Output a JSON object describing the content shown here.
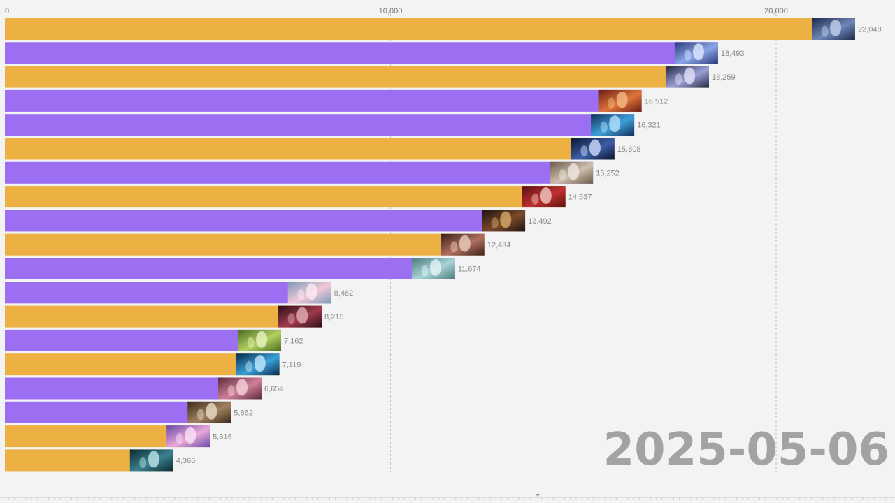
{
  "date_label": "2025-05-06",
  "colors": {
    "orange": "#ecb142",
    "purple": "#9b6ef2",
    "background": "#f3f3f3",
    "gridline": "#bdbdbd",
    "value_text": "#8a8a8a",
    "date_text": "#a3a3a3"
  },
  "chart_data": {
    "type": "bar",
    "orientation": "horizontal",
    "title": "",
    "xlabel": "",
    "ylabel": "",
    "xlim": [
      0,
      21800
    ],
    "x_ticks": [
      {
        "value": 0,
        "label": "0"
      },
      {
        "value": 10000,
        "label": "10,000"
      },
      {
        "value": 20000,
        "label": "20,000"
      }
    ],
    "grid": "vertical dashed at ticks",
    "legend": "none",
    "bars": [
      {
        "value": 22048,
        "label": "22,048",
        "color": "orange"
      },
      {
        "value": 18493,
        "label": "18,493",
        "color": "purple"
      },
      {
        "value": 18259,
        "label": "18,259",
        "color": "orange"
      },
      {
        "value": 16512,
        "label": "16,512",
        "color": "purple"
      },
      {
        "value": 16321,
        "label": "16,321",
        "color": "purple"
      },
      {
        "value": 15808,
        "label": "15,808",
        "color": "orange"
      },
      {
        "value": 15252,
        "label": "15,252",
        "color": "purple"
      },
      {
        "value": 14537,
        "label": "14,537",
        "color": "orange"
      },
      {
        "value": 13492,
        "label": "13,492",
        "color": "purple"
      },
      {
        "value": 12434,
        "label": "12,434",
        "color": "orange"
      },
      {
        "value": 11674,
        "label": "11,674",
        "color": "purple"
      },
      {
        "value": 8462,
        "label": "8,462",
        "color": "purple"
      },
      {
        "value": 8215,
        "label": "8,215",
        "color": "orange"
      },
      {
        "value": 7162,
        "label": "7,162",
        "color": "purple"
      },
      {
        "value": 7119,
        "label": "7,119",
        "color": "orange"
      },
      {
        "value": 6654,
        "label": "6,654",
        "color": "purple"
      },
      {
        "value": 5862,
        "label": "5,862",
        "color": "purple"
      },
      {
        "value": 5316,
        "label": "5,316",
        "color": "orange"
      },
      {
        "value": 4366,
        "label": "4,366",
        "color": "orange"
      }
    ],
    "thumbnails": [
      {
        "palette": [
          "#1b2a4a",
          "#6f86b8",
          "#c9d4ee"
        ]
      },
      {
        "palette": [
          "#2b3a7a",
          "#8aa6e8",
          "#e4ecff"
        ]
      },
      {
        "palette": [
          "#22253f",
          "#9aa0d8",
          "#ece8fb"
        ]
      },
      {
        "palette": [
          "#6a1f12",
          "#e0733a",
          "#f7c08a"
        ]
      },
      {
        "palette": [
          "#10305a",
          "#3f9fd8",
          "#bfe6ff"
        ]
      },
      {
        "palette": [
          "#0b1530",
          "#3c5ea8",
          "#dbe4ff"
        ]
      },
      {
        "palette": [
          "#6b5a4a",
          "#cfbfae",
          "#f2ebe6"
        ]
      },
      {
        "palette": [
          "#5a1010",
          "#c03030",
          "#f3d4cf"
        ]
      },
      {
        "palette": [
          "#1b120e",
          "#7a4a2a",
          "#e0b070"
        ]
      },
      {
        "palette": [
          "#3a1f1a",
          "#b07060",
          "#f0d6c4"
        ]
      },
      {
        "palette": [
          "#4a7a7a",
          "#a8d4d8",
          "#eaf6f8"
        ]
      },
      {
        "palette": [
          "#7a9ab8",
          "#f0c8d8",
          "#fbeef4"
        ]
      },
      {
        "palette": [
          "#2a0f18",
          "#a03a4a",
          "#e8b8c0"
        ]
      },
      {
        "palette": [
          "#4a6a20",
          "#b0d060",
          "#f0f4c8"
        ]
      },
      {
        "palette": [
          "#0a2a4a",
          "#3aa0d8",
          "#cfeeff"
        ]
      },
      {
        "palette": [
          "#5a2a3a",
          "#d08098",
          "#f8d8e0"
        ]
      },
      {
        "palette": [
          "#3a2a1a",
          "#a08060",
          "#f0e4d0"
        ]
      },
      {
        "palette": [
          "#6a4aa8",
          "#e8a8d8",
          "#fbe8f8"
        ]
      },
      {
        "palette": [
          "#0a2a30",
          "#3a8090",
          "#c8eef0"
        ]
      }
    ]
  }
}
